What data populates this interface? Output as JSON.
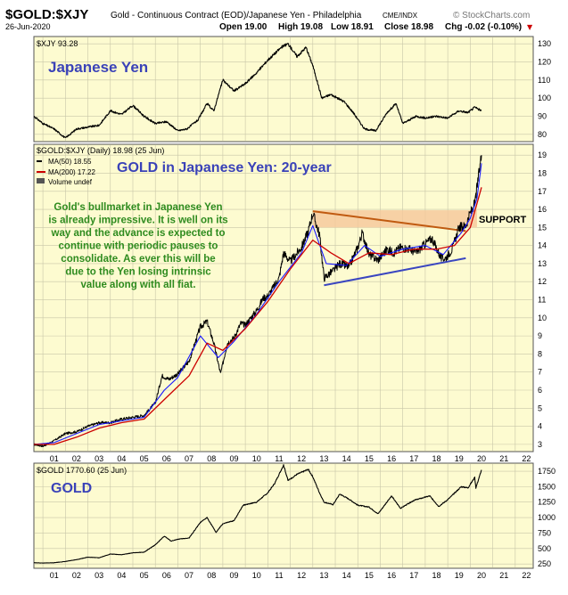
{
  "header": {
    "symbol": "$GOLD:$XJY",
    "description": "Gold - Continuous Contract (EOD)/Japanese Yen - Philadelphia",
    "exchange": "CME/INDX",
    "brand": "© StockCharts.com",
    "date": "26-Jun-2020",
    "open": "Open 19.00",
    "high": "High 19.08",
    "low": "Low 18.91",
    "close": "Close 18.98",
    "chg": "Chg -0.02 (-0.10%)",
    "chg_arrow": "▼"
  },
  "colors": {
    "panel_bg": "#fdfbd0",
    "price": "#000000",
    "ma50": "#1a1aff",
    "ma200": "#cc0000",
    "title_blue": "#3a42b8",
    "annotation_green": "#2e8b1e",
    "support_fill": "#f5c79a",
    "support_line": "#c05a10",
    "trend_blue": "#3a46c0"
  },
  "x_axis": {
    "tick_labels": [
      "01",
      "02",
      "03",
      "04",
      "05",
      "06",
      "07",
      "08",
      "09",
      "10",
      "11",
      "12",
      "13",
      "14",
      "15",
      "16",
      "17",
      "18",
      "19",
      "20",
      "21",
      "22"
    ]
  },
  "chart_data": [
    {
      "type": "line",
      "panel": "top",
      "legend": "$XJY 93.28",
      "title": "Japanese Yen",
      "y_ticks": [
        80,
        90,
        100,
        110,
        120,
        130
      ],
      "ylim": [
        76,
        134
      ],
      "xlim": [
        2000.6,
        2022.8
      ],
      "series": [
        {
          "points": [
            [
              2000.6,
              90
            ],
            [
              2001.0,
              86
            ],
            [
              2001.5,
              83
            ],
            [
              2002.0,
              78
            ],
            [
              2002.5,
              83
            ],
            [
              2003.0,
              84
            ],
            [
              2003.5,
              85
            ],
            [
              2004.0,
              93
            ],
            [
              2004.5,
              91
            ],
            [
              2005.0,
              96
            ],
            [
              2005.5,
              90
            ],
            [
              2006.0,
              86
            ],
            [
              2006.5,
              87
            ],
            [
              2007.0,
              82
            ],
            [
              2007.4,
              83
            ],
            [
              2007.9,
              88
            ],
            [
              2008.3,
              97
            ],
            [
              2008.6,
              93
            ],
            [
              2009.0,
              110
            ],
            [
              2009.5,
              104
            ],
            [
              2010.0,
              108
            ],
            [
              2010.5,
              114
            ],
            [
              2011.0,
              121
            ],
            [
              2011.6,
              128
            ],
            [
              2011.9,
              130
            ],
            [
              2012.3,
              123
            ],
            [
              2012.7,
              128
            ],
            [
              2013.0,
              118
            ],
            [
              2013.4,
              100
            ],
            [
              2013.8,
              102
            ],
            [
              2014.4,
              98
            ],
            [
              2014.8,
              92
            ],
            [
              2015.3,
              83
            ],
            [
              2015.8,
              82
            ],
            [
              2016.3,
              92
            ],
            [
              2016.7,
              97
            ],
            [
              2017.0,
              86
            ],
            [
              2017.6,
              90
            ],
            [
              2018.0,
              89
            ],
            [
              2018.5,
              90
            ],
            [
              2019.0,
              89
            ],
            [
              2019.5,
              93
            ],
            [
              2019.9,
              92
            ],
            [
              2020.2,
              95
            ],
            [
              2020.5,
              93
            ]
          ]
        }
      ]
    },
    {
      "type": "line",
      "panel": "middle",
      "legend": {
        "symbol_line": "$GOLD:$XJY (Daily) 18.98 (25 Jun)",
        "ma50": "MA(50) 18.55",
        "ma200": "MA(200) 17.22",
        "volume": "Volume undef"
      },
      "title": "GOLD in Japanese Yen: 20-year",
      "annotation": "Gold's bullmarket in Japanese Yen is already impressive. It is well on its way and the advance is expected to continue with periodic pauses to consolidate. As ever this will be due to the Yen losing intrinsic value along with all fiat.",
      "support_label": "SUPPORT",
      "y_ticks": [
        3,
        4,
        5,
        6,
        7,
        8,
        9,
        10,
        11,
        12,
        13,
        14,
        15,
        16,
        17,
        18,
        19
      ],
      "ylim": [
        2.6,
        19.6
      ],
      "xlim": [
        2000.6,
        2022.8
      ],
      "support_band": {
        "x": [
          2013.0,
          2020.3
        ],
        "y": [
          15.0,
          15.95
        ]
      },
      "resistance_line": [
        [
          2013.0,
          15.9
        ],
        [
          2019.8,
          14.8
        ]
      ],
      "trend_line": [
        [
          2013.5,
          11.8
        ],
        [
          2019.8,
          13.3
        ]
      ],
      "series": [
        {
          "name": "$GOLD:$XJY",
          "points": [
            [
              2000.6,
              3.0
            ],
            [
              2001.0,
              2.9
            ],
            [
              2001.5,
              3.2
            ],
            [
              2002.0,
              3.6
            ],
            [
              2002.5,
              3.7
            ],
            [
              2003.0,
              4.0
            ],
            [
              2003.5,
              4.2
            ],
            [
              2004.0,
              4.2
            ],
            [
              2004.5,
              4.4
            ],
            [
              2005.0,
              4.5
            ],
            [
              2005.5,
              4.6
            ],
            [
              2006.0,
              5.3
            ],
            [
              2006.3,
              6.8
            ],
            [
              2006.6,
              6.6
            ],
            [
              2007.0,
              6.9
            ],
            [
              2007.5,
              7.6
            ],
            [
              2008.0,
              9.5
            ],
            [
              2008.3,
              9.8
            ],
            [
              2008.6,
              8.6
            ],
            [
              2008.9,
              6.9
            ],
            [
              2009.2,
              8.6
            ],
            [
              2009.5,
              8.9
            ],
            [
              2009.8,
              9.7
            ],
            [
              2010.0,
              9.6
            ],
            [
              2010.5,
              10.4
            ],
            [
              2010.8,
              11.1
            ],
            [
              2011.0,
              11.2
            ],
            [
              2011.5,
              12.2
            ],
            [
              2011.7,
              13.6
            ],
            [
              2012.0,
              13.1
            ],
            [
              2012.5,
              13.9
            ],
            [
              2012.8,
              14.8
            ],
            [
              2013.0,
              15.8
            ],
            [
              2013.3,
              14.6
            ],
            [
              2013.5,
              12.2
            ],
            [
              2013.9,
              12.6
            ],
            [
              2014.2,
              13.0
            ],
            [
              2014.6,
              12.8
            ],
            [
              2015.0,
              13.9
            ],
            [
              2015.2,
              14.7
            ],
            [
              2015.5,
              13.5
            ],
            [
              2015.9,
              13.2
            ],
            [
              2016.3,
              13.8
            ],
            [
              2016.6,
              13.6
            ],
            [
              2016.9,
              13.9
            ],
            [
              2017.3,
              13.8
            ],
            [
              2017.6,
              13.6
            ],
            [
              2018.0,
              14.1
            ],
            [
              2018.3,
              14.4
            ],
            [
              2018.7,
              13.3
            ],
            [
              2018.9,
              13.3
            ],
            [
              2019.2,
              13.8
            ],
            [
              2019.5,
              15.0
            ],
            [
              2019.8,
              15.1
            ],
            [
              2020.0,
              15.8
            ],
            [
              2020.2,
              16.3
            ],
            [
              2020.3,
              17.2
            ],
            [
              2020.45,
              18.6
            ],
            [
              2020.5,
              19.0
            ]
          ]
        },
        {
          "name": "MA(50)",
          "points": [
            [
              2000.6,
              3.0
            ],
            [
              2001.5,
              3.1
            ],
            [
              2002.5,
              3.6
            ],
            [
              2003.5,
              4.1
            ],
            [
              2004.5,
              4.3
            ],
            [
              2005.5,
              4.5
            ],
            [
              2006.4,
              6.0
            ],
            [
              2007.0,
              6.7
            ],
            [
              2008.0,
              9.0
            ],
            [
              2008.8,
              7.8
            ],
            [
              2009.5,
              8.7
            ],
            [
              2010.5,
              10.2
            ],
            [
              2011.5,
              12.0
            ],
            [
              2012.5,
              13.6
            ],
            [
              2013.0,
              15.1
            ],
            [
              2013.6,
              13.0
            ],
            [
              2014.5,
              12.9
            ],
            [
              2015.3,
              14.0
            ],
            [
              2016.0,
              13.4
            ],
            [
              2017.0,
              13.8
            ],
            [
              2018.0,
              14.0
            ],
            [
              2018.8,
              13.5
            ],
            [
              2019.6,
              14.7
            ],
            [
              2020.0,
              15.5
            ],
            [
              2020.3,
              16.6
            ],
            [
              2020.5,
              18.55
            ]
          ]
        },
        {
          "name": "MA(200)",
          "points": [
            [
              2000.6,
              3.0
            ],
            [
              2001.5,
              3.0
            ],
            [
              2002.5,
              3.4
            ],
            [
              2003.5,
              3.9
            ],
            [
              2004.5,
              4.2
            ],
            [
              2005.5,
              4.4
            ],
            [
              2006.5,
              5.6
            ],
            [
              2007.5,
              6.8
            ],
            [
              2008.3,
              8.6
            ],
            [
              2009.0,
              8.2
            ],
            [
              2010.0,
              9.4
            ],
            [
              2011.0,
              10.9
            ],
            [
              2012.0,
              12.7
            ],
            [
              2013.0,
              14.3
            ],
            [
              2013.8,
              13.6
            ],
            [
              2014.6,
              13.0
            ],
            [
              2015.5,
              13.6
            ],
            [
              2016.5,
              13.5
            ],
            [
              2017.5,
              13.8
            ],
            [
              2018.5,
              13.8
            ],
            [
              2019.3,
              14.0
            ],
            [
              2020.0,
              15.0
            ],
            [
              2020.5,
              17.22
            ]
          ]
        }
      ]
    },
    {
      "type": "line",
      "panel": "bottom",
      "legend": "$GOLD 1770.60 (25 Jun)",
      "title": "GOLD",
      "y_ticks": [
        250,
        500,
        750,
        1000,
        1250,
        1500,
        1750
      ],
      "ylim": [
        180,
        1880
      ],
      "xlim": [
        2000.6,
        2022.8
      ],
      "series": [
        {
          "points": [
            [
              2000.6,
              270
            ],
            [
              2001.0,
              265
            ],
            [
              2001.5,
              270
            ],
            [
              2002.0,
              290
            ],
            [
              2002.5,
              320
            ],
            [
              2003.0,
              360
            ],
            [
              2003.5,
              350
            ],
            [
              2004.0,
              410
            ],
            [
              2004.5,
              400
            ],
            [
              2005.0,
              430
            ],
            [
              2005.5,
              440
            ],
            [
              2006.0,
              560
            ],
            [
              2006.4,
              700
            ],
            [
              2006.7,
              620
            ],
            [
              2007.0,
              650
            ],
            [
              2007.5,
              670
            ],
            [
              2008.0,
              920
            ],
            [
              2008.3,
              1000
            ],
            [
              2008.7,
              760
            ],
            [
              2009.0,
              900
            ],
            [
              2009.5,
              950
            ],
            [
              2009.9,
              1200
            ],
            [
              2010.5,
              1250
            ],
            [
              2011.0,
              1400
            ],
            [
              2011.3,
              1550
            ],
            [
              2011.7,
              1850
            ],
            [
              2011.9,
              1600
            ],
            [
              2012.3,
              1700
            ],
            [
              2012.8,
              1780
            ],
            [
              2013.0,
              1660
            ],
            [
              2013.3,
              1400
            ],
            [
              2013.5,
              1250
            ],
            [
              2013.9,
              1210
            ],
            [
              2014.2,
              1380
            ],
            [
              2014.6,
              1300
            ],
            [
              2015.0,
              1200
            ],
            [
              2015.5,
              1170
            ],
            [
              2015.9,
              1060
            ],
            [
              2016.5,
              1350
            ],
            [
              2016.9,
              1150
            ],
            [
              2017.5,
              1280
            ],
            [
              2018.2,
              1350
            ],
            [
              2018.6,
              1180
            ],
            [
              2019.0,
              1290
            ],
            [
              2019.6,
              1500
            ],
            [
              2019.9,
              1480
            ],
            [
              2020.2,
              1650
            ],
            [
              2020.25,
              1480
            ],
            [
              2020.5,
              1770
            ]
          ]
        }
      ]
    }
  ]
}
